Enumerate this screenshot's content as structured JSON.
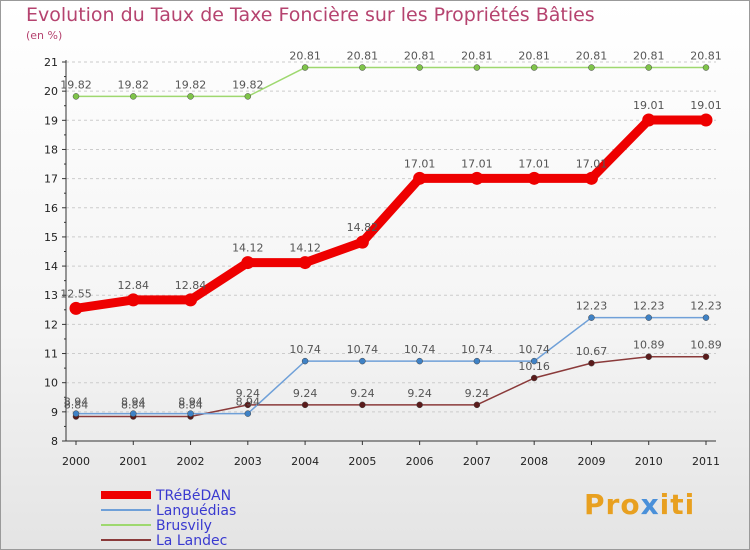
{
  "header": {
    "title": "Evolution du Taux de Taxe Foncière sur les Propriétés Bâties",
    "unit": "(en %)"
  },
  "logo": {
    "text": "Proxiti"
  },
  "colors": {
    "axis": "#333333",
    "grid": "#cccccc",
    "tick_label": "#222222",
    "data_label": "#555555"
  },
  "chart_data": {
    "type": "line",
    "title": "Evolution du Taux de Taxe Foncière sur les Propriétés Bâties",
    "ylabel": "(en %)",
    "xlabel": "",
    "x": [
      "2000",
      "2001",
      "2002",
      "2003",
      "2004",
      "2005",
      "2006",
      "2007",
      "2008",
      "2009",
      "2010",
      "2011"
    ],
    "ylim": [
      8,
      21
    ],
    "yticks": [
      8,
      9,
      10,
      11,
      12,
      13,
      14,
      15,
      16,
      17,
      18,
      19,
      20,
      21
    ],
    "grid": "horizontal dashed",
    "legend_position": "bottom-left",
    "series": [
      {
        "name": "TRéBéDAN",
        "color": "#ee0000",
        "emphasis": "thick",
        "values": [
          12.55,
          12.84,
          12.84,
          14.12,
          14.12,
          14.82,
          17.01,
          17.01,
          17.01,
          17.01,
          19.01,
          19.01
        ],
        "labels": [
          "12.55",
          "12.84",
          "12.84",
          "14.12",
          "14.12",
          "14.82",
          "17.01",
          "17.01",
          "17.01",
          "17.01",
          "19.01",
          "19.01"
        ]
      },
      {
        "name": "Languédias",
        "color": "#6fa0d8",
        "marker_color": "#3f82c6",
        "values": [
          8.94,
          8.94,
          8.94,
          8.94,
          10.74,
          10.74,
          10.74,
          10.74,
          10.74,
          12.23,
          12.23,
          12.23
        ],
        "labels": [
          "8.94",
          "8.94",
          "8.94",
          "8.94",
          "10.74",
          "10.74",
          "10.74",
          "10.74",
          "10.74",
          "12.23",
          "12.23",
          "12.23"
        ]
      },
      {
        "name": "Brusvily",
        "color": "#9ed86f",
        "marker_color": "#7fc44a",
        "values": [
          19.82,
          19.82,
          19.82,
          19.82,
          20.81,
          20.81,
          20.81,
          20.81,
          20.81,
          20.81,
          20.81,
          20.81
        ],
        "labels": [
          "19.82",
          "19.82",
          "19.82",
          "19.82",
          "20.81",
          "20.81",
          "20.81",
          "20.81",
          "20.81",
          "20.81",
          "20.81",
          "20.81"
        ]
      },
      {
        "name": "La Landec",
        "color": "#8a3a3a",
        "marker_color": "#5a1a1a",
        "values": [
          8.84,
          8.84,
          8.84,
          9.24,
          9.24,
          9.24,
          9.24,
          9.24,
          10.16,
          10.67,
          10.89,
          10.89
        ],
        "labels": [
          "8.84",
          "8.84",
          "8.84",
          "9.24",
          "9.24",
          "9.24",
          "9.24",
          "9.24",
          "10.16",
          "10.67",
          "10.89",
          "10.89"
        ]
      }
    ]
  }
}
